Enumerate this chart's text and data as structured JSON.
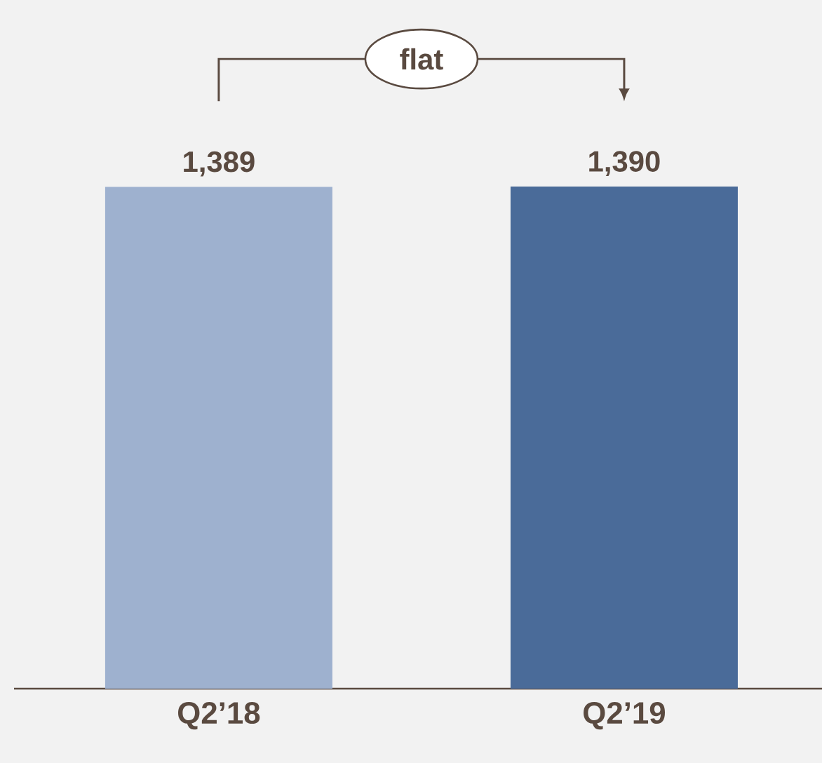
{
  "chart_data": {
    "type": "bar",
    "categories": [
      "Q2’18",
      "Q2’19"
    ],
    "values": [
      1389,
      1390
    ],
    "colors": [
      "#9eb1cf",
      "#4a6b99"
    ],
    "value_labels": [
      "1,389",
      "1,390"
    ],
    "annotations": [
      "flat"
    ]
  }
}
